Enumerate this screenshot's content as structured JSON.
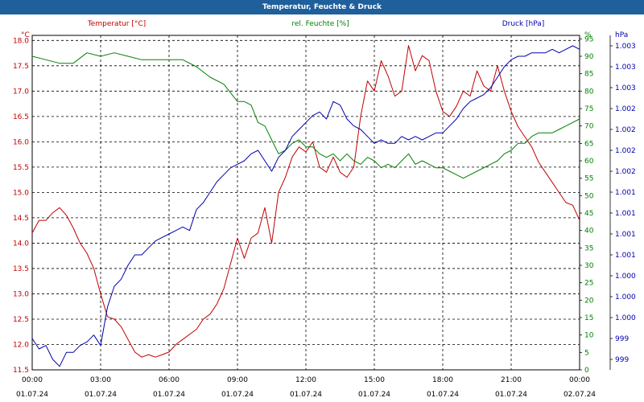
{
  "title": "Temperatur, Feuchte & Druck",
  "chart_data": {
    "type": "line",
    "title": "Temperatur, Feuchte & Druck",
    "grid": true,
    "axes": {
      "temperature": {
        "label": "Temperatur [°C]",
        "unit": "°C",
        "ylim": [
          11.5,
          18.1
        ],
        "ticks": [
          "11.5",
          "12.0",
          "12.5",
          "13.0",
          "13.5",
          "14.0",
          "14.5",
          "15.0",
          "15.5",
          "16.0",
          "16.5",
          "17.0",
          "17.5",
          "18.0"
        ],
        "color": "#c00000"
      },
      "humidity": {
        "label": "rel. Feuchte [%]",
        "unit": "%",
        "ylim": [
          0,
          96
        ],
        "ticks": [
          "0",
          "5",
          "10",
          "15",
          "20",
          "25",
          "30",
          "35",
          "40",
          "45",
          "50",
          "55",
          "60",
          "65",
          "70",
          "75",
          "80",
          "85",
          "90",
          "95"
        ],
        "right_unit": "%",
        "color": "#008000"
      },
      "pressure": {
        "label": "Druck [hPa]",
        "unit": "hPa",
        "ylim": [
          998.6,
          1003.4
        ],
        "ticks": [
          "999",
          "999",
          "1.000",
          "1.000",
          "1.000",
          "1.001",
          "1.001",
          "1.001",
          "1.001",
          "1.002",
          "1.002",
          "1.002",
          "1.002",
          "1.003",
          "1.003",
          "1.003"
        ],
        "color": "#0000b0"
      }
    },
    "x_ticks": [
      {
        "time": "00:00",
        "date": "01.07.24"
      },
      {
        "time": "03:00",
        "date": "01.07.24"
      },
      {
        "time": "06:00",
        "date": "01.07.24"
      },
      {
        "time": "09:00",
        "date": "01.07.24"
      },
      {
        "time": "12:00",
        "date": "01.07.24"
      },
      {
        "time": "15:00",
        "date": "01.07.24"
      },
      {
        "time": "18:00",
        "date": "01.07.24"
      },
      {
        "time": "21:00",
        "date": "01.07.24"
      },
      {
        "time": "00:00",
        "date": "02.07.24"
      }
    ],
    "xlim": [
      0,
      24
    ],
    "series": [
      {
        "name": "Temperatur [°C]",
        "axis": "temperature",
        "color": "#c00000",
        "x": [
          0,
          0.3,
          0.6,
          0.9,
          1.2,
          1.5,
          1.8,
          2.1,
          2.4,
          2.7,
          3.0,
          3.3,
          3.6,
          3.9,
          4.2,
          4.5,
          4.8,
          5.1,
          5.4,
          5.7,
          6.0,
          6.3,
          6.6,
          6.9,
          7.2,
          7.5,
          7.8,
          8.1,
          8.4,
          8.7,
          9.0,
          9.3,
          9.6,
          9.9,
          10.2,
          10.5,
          10.8,
          11.1,
          11.4,
          11.7,
          12.0,
          12.3,
          12.6,
          12.9,
          13.2,
          13.5,
          13.8,
          14.1,
          14.4,
          14.7,
          15.0,
          15.3,
          15.6,
          15.9,
          16.2,
          16.5,
          16.8,
          17.1,
          17.4,
          17.7,
          18.0,
          18.3,
          18.6,
          18.9,
          19.2,
          19.5,
          19.8,
          20.1,
          20.4,
          20.7,
          21.0,
          21.3,
          21.6,
          21.9,
          22.2,
          22.5,
          22.8,
          23.1,
          23.4,
          23.7,
          24.0
        ],
        "values": [
          14.2,
          14.45,
          14.45,
          14.6,
          14.7,
          14.55,
          14.3,
          14.0,
          13.8,
          13.5,
          13.0,
          12.55,
          12.5,
          12.35,
          12.1,
          11.85,
          11.75,
          11.8,
          11.75,
          11.8,
          11.85,
          12.0,
          12.1,
          12.2,
          12.3,
          12.5,
          12.6,
          12.8,
          13.1,
          13.6,
          14.1,
          13.7,
          14.1,
          14.2,
          14.7,
          14.0,
          15.0,
          15.3,
          15.7,
          15.9,
          15.8,
          16.0,
          15.5,
          15.4,
          15.7,
          15.4,
          15.3,
          15.5,
          16.5,
          17.2,
          17.0,
          17.6,
          17.3,
          16.9,
          17.0,
          17.9,
          17.4,
          17.7,
          17.6,
          17.0,
          16.6,
          16.5,
          16.7,
          17.0,
          16.9,
          17.4,
          17.1,
          17.0,
          17.5,
          17.0,
          16.6,
          16.3,
          16.1,
          15.9,
          15.6,
          15.4,
          15.2,
          15.0,
          14.8,
          14.75,
          14.45
        ]
      },
      {
        "name": "rel. Feuchte [%]",
        "axis": "humidity",
        "color": "#008000",
        "x": [
          0,
          0.6,
          1.2,
          1.8,
          2.4,
          3.0,
          3.6,
          4.2,
          4.8,
          5.4,
          6.0,
          6.6,
          7.2,
          7.8,
          8.4,
          9.0,
          9.3,
          9.6,
          9.9,
          10.2,
          10.5,
          10.8,
          11.1,
          11.4,
          11.7,
          12.0,
          12.3,
          12.6,
          12.9,
          13.2,
          13.5,
          13.8,
          14.1,
          14.4,
          14.7,
          15.0,
          15.3,
          15.6,
          15.9,
          16.2,
          16.5,
          16.8,
          17.1,
          17.4,
          17.7,
          18.0,
          18.3,
          18.6,
          18.9,
          19.2,
          19.5,
          19.8,
          20.1,
          20.4,
          20.7,
          21.0,
          21.3,
          21.6,
          21.9,
          22.2,
          22.5,
          22.8,
          23.1,
          23.4,
          23.7,
          24.0
        ],
        "values": [
          90,
          89,
          88,
          88,
          91,
          90,
          91,
          90,
          89,
          89,
          89,
          89,
          87,
          84,
          82,
          77,
          77,
          76,
          71,
          70,
          66,
          62,
          63,
          65,
          66,
          64,
          64,
          62,
          61,
          62,
          60,
          62,
          60,
          59,
          61,
          60,
          58,
          59,
          58,
          60,
          62,
          59,
          60,
          59,
          58,
          58,
          57,
          56,
          55,
          56,
          57,
          58,
          59,
          60,
          62,
          63,
          65,
          65,
          67,
          68,
          68,
          68,
          69,
          70,
          71,
          72
        ]
      },
      {
        "name": "Druck [hPa]",
        "axis": "pressure",
        "color": "#0000b0",
        "x": [
          0,
          0.3,
          0.6,
          0.9,
          1.2,
          1.5,
          1.8,
          2.1,
          2.4,
          2.7,
          3.0,
          3.3,
          3.6,
          3.9,
          4.2,
          4.5,
          4.8,
          5.1,
          5.4,
          5.7,
          6.0,
          6.3,
          6.6,
          6.9,
          7.2,
          7.5,
          7.8,
          8.1,
          8.4,
          8.7,
          9.0,
          9.3,
          9.6,
          9.9,
          10.2,
          10.5,
          10.8,
          11.1,
          11.4,
          11.7,
          12.0,
          12.3,
          12.6,
          12.9,
          13.2,
          13.5,
          13.8,
          14.1,
          14.4,
          14.7,
          15.0,
          15.3,
          15.6,
          15.9,
          16.2,
          16.5,
          16.8,
          17.1,
          17.4,
          17.7,
          18.0,
          18.3,
          18.6,
          18.9,
          19.2,
          19.5,
          19.8,
          20.1,
          20.4,
          20.7,
          21.0,
          21.3,
          21.6,
          21.9,
          22.2,
          22.5,
          22.8,
          23.1,
          23.4,
          23.7,
          24.0
        ],
        "values": [
          999.05,
          998.9,
          998.95,
          998.75,
          998.65,
          998.85,
          998.85,
          998.95,
          999.0,
          999.1,
          998.95,
          999.5,
          999.8,
          999.9,
          1000.1,
          1000.25,
          1000.25,
          1000.35,
          1000.45,
          1000.5,
          1000.55,
          1000.6,
          1000.65,
          1000.6,
          1000.9,
          1001.0,
          1001.15,
          1001.3,
          1001.4,
          1001.5,
          1001.55,
          1001.6,
          1001.7,
          1001.75,
          1001.6,
          1001.45,
          1001.65,
          1001.75,
          1001.95,
          1002.05,
          1002.15,
          1002.25,
          1002.3,
          1002.2,
          1002.45,
          1002.4,
          1002.2,
          1002.1,
          1002.05,
          1001.95,
          1001.85,
          1001.9,
          1001.85,
          1001.85,
          1001.95,
          1001.9,
          1001.95,
          1001.9,
          1001.95,
          1002.0,
          1002.0,
          1002.1,
          1002.2,
          1002.35,
          1002.45,
          1002.5,
          1002.55,
          1002.65,
          1002.8,
          1002.95,
          1003.05,
          1003.1,
          1003.1,
          1003.15,
          1003.15,
          1003.15,
          1003.2,
          1003.15,
          1003.2,
          1003.25,
          1003.2
        ]
      }
    ]
  }
}
